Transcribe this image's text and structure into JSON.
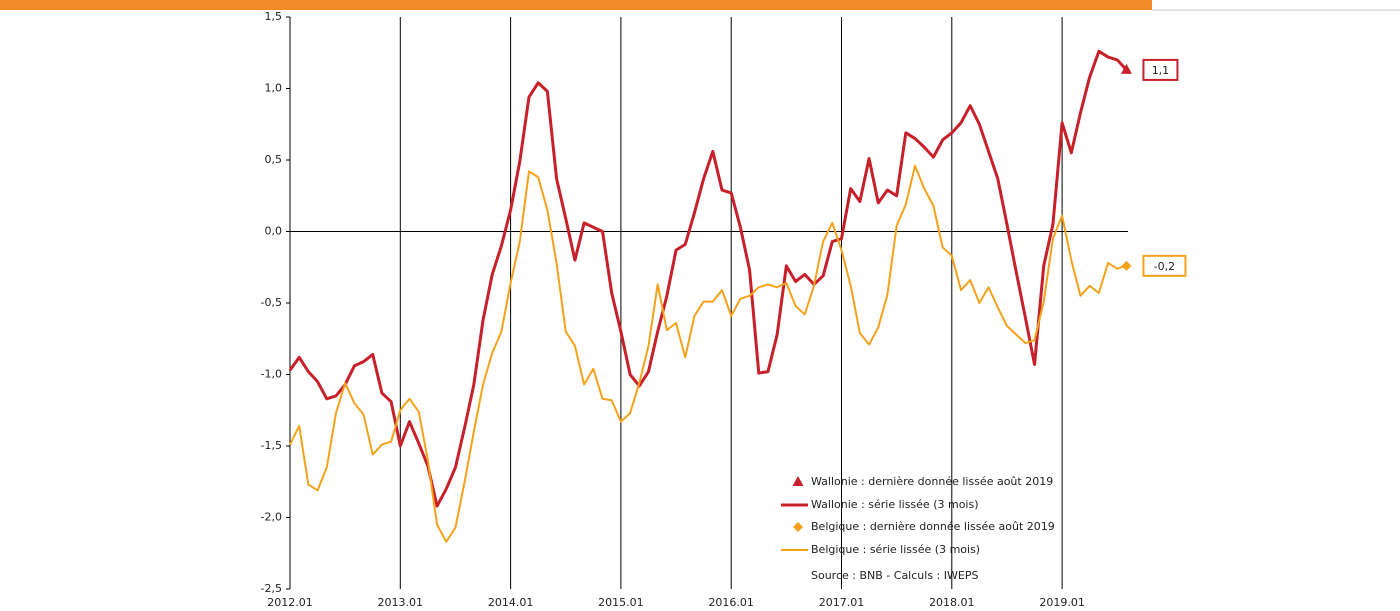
{
  "chart_data": {
    "type": "line",
    "categories": [
      "2012.01",
      null,
      null,
      null,
      null,
      null,
      null,
      null,
      null,
      null,
      null,
      null,
      "2013.01",
      null,
      null,
      null,
      null,
      null,
      null,
      null,
      null,
      null,
      null,
      null,
      "2014.01",
      null,
      null,
      null,
      null,
      null,
      null,
      null,
      null,
      null,
      null,
      null,
      "2015.01",
      null,
      null,
      null,
      null,
      null,
      null,
      null,
      null,
      null,
      null,
      null,
      "2016.01",
      null,
      null,
      null,
      null,
      null,
      null,
      null,
      null,
      null,
      null,
      null,
      "2017.01",
      null,
      null,
      null,
      null,
      null,
      null,
      null,
      null,
      null,
      null,
      null,
      "2018.01",
      null,
      null,
      null,
      null,
      null,
      null,
      null,
      null,
      null,
      null,
      null,
      "2019.01",
      null,
      null,
      null,
      null,
      null,
      null,
      null
    ],
    "series": [
      {
        "name": "Wallonie : série lissée (3 mois)",
        "color": "#c8202a",
        "width": 3,
        "values": [
          -0.97,
          -0.88,
          -0.98,
          -1.05,
          -1.17,
          -1.15,
          -1.07,
          -0.94,
          -0.91,
          -0.86,
          -1.13,
          -1.19,
          -1.5,
          -1.33,
          -1.48,
          -1.64,
          -1.92,
          -1.8,
          -1.65,
          -1.37,
          -1.07,
          -0.62,
          -0.3,
          -0.1,
          0.15,
          0.49,
          0.94,
          1.04,
          0.98,
          0.37,
          0.09,
          -0.2,
          0.06,
          0.03,
          0.0,
          -0.43,
          -0.7,
          -1.0,
          -1.08,
          -0.98,
          -0.7,
          -0.45,
          -0.13,
          -0.09,
          0.13,
          0.37,
          0.56,
          0.29,
          0.27,
          0.03,
          -0.27,
          -0.99,
          -0.98,
          -0.72,
          -0.24,
          -0.35,
          -0.3,
          -0.37,
          -0.31,
          -0.07,
          -0.05,
          0.3,
          0.21,
          0.51,
          0.2,
          0.29,
          0.25,
          0.69,
          0.65,
          0.59,
          0.52,
          0.64,
          0.69,
          0.76,
          0.88,
          0.75,
          0.56,
          0.37,
          0.05,
          -0.28,
          -0.6,
          -0.93,
          -0.24,
          0.05,
          0.76,
          0.55,
          0.83,
          1.08,
          1.26,
          1.22,
          1.2,
          1.13
        ],
        "last_point": {
          "name": "Wallonie : dernière donnée lissée août 2019",
          "marker": "triangle",
          "value": 1.13,
          "value_label": "1,1"
        }
      },
      {
        "name": "Belgique : série lissée (3 mois)",
        "color": "#f5a21b",
        "width": 2,
        "values": [
          -1.49,
          -1.36,
          -1.77,
          -1.81,
          -1.65,
          -1.27,
          -1.06,
          -1.2,
          -1.28,
          -1.56,
          -1.49,
          -1.47,
          -1.25,
          -1.17,
          -1.26,
          -1.6,
          -2.05,
          -2.17,
          -2.07,
          -1.75,
          -1.4,
          -1.07,
          -0.85,
          -0.7,
          -0.36,
          -0.07,
          0.42,
          0.38,
          0.15,
          -0.22,
          -0.7,
          -0.8,
          -1.07,
          -0.96,
          -1.17,
          -1.18,
          -1.33,
          -1.27,
          -1.06,
          -0.8,
          -0.37,
          -0.69,
          -0.64,
          -0.88,
          -0.59,
          -0.49,
          -0.49,
          -0.41,
          -0.59,
          -0.47,
          -0.45,
          -0.39,
          -0.37,
          -0.39,
          -0.36,
          -0.52,
          -0.58,
          -0.38,
          -0.07,
          0.06,
          -0.13,
          -0.38,
          -0.71,
          -0.79,
          -0.67,
          -0.44,
          0.04,
          0.19,
          0.46,
          0.3,
          0.18,
          -0.11,
          -0.17,
          -0.41,
          -0.34,
          -0.5,
          -0.39,
          -0.53,
          -0.66,
          -0.72,
          -0.78,
          -0.76,
          -0.49,
          -0.05,
          0.11,
          -0.2,
          -0.45,
          -0.38,
          -0.43,
          -0.22,
          -0.26,
          -0.24
        ],
        "last_point": {
          "name": "Belgique : dernière donnée lissée août 2019",
          "marker": "diamond",
          "value": -0.24,
          "value_label": "-0,2"
        }
      }
    ],
    "ylim": [
      -2.5,
      1.5
    ],
    "yticks": [
      {
        "value": -2.5,
        "label": "-2,5"
      },
      {
        "value": -2,
        "label": "-2,0"
      },
      {
        "value": -1.5,
        "label": "-1,5"
      },
      {
        "value": -1,
        "label": "-1,0"
      },
      {
        "value": -0.5,
        "label": "-0,5"
      },
      {
        "value": 0,
        "label": "0,0"
      },
      {
        "value": 0.5,
        "label": "0,5"
      },
      {
        "value": 1,
        "label": "1,0"
      },
      {
        "value": 1.5,
        "label": "1,5"
      }
    ],
    "source": "Source : BNB - Calculs : IWEPS",
    "grid": true
  }
}
